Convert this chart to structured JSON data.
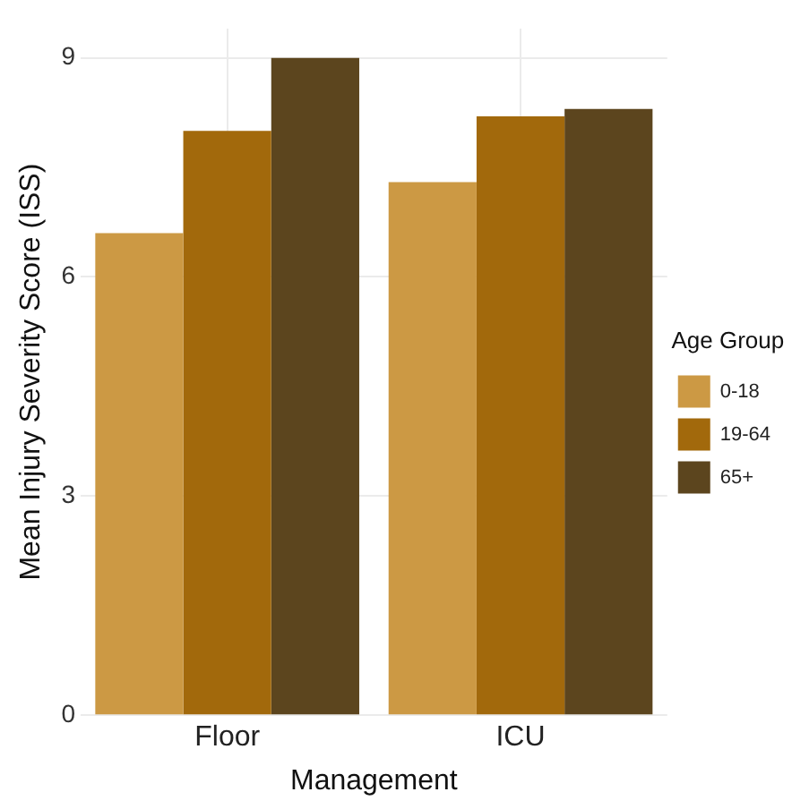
{
  "chart_data": {
    "type": "bar",
    "xlabel": "Management",
    "ylabel": "Mean Injury Severity Score (ISS)",
    "legend_title": "Age Group",
    "categories": [
      "Floor",
      "ICU"
    ],
    "series": [
      {
        "name": "0-18",
        "color": "#cc9944",
        "values": [
          6.6,
          7.3
        ]
      },
      {
        "name": "19-64",
        "color": "#a2690c",
        "values": [
          8.0,
          8.2
        ]
      },
      {
        "name": "65+",
        "color": "#5c451e",
        "values": [
          9.0,
          8.3
        ]
      }
    ],
    "ylim": [
      0,
      9.4
    ],
    "yticks": [
      0,
      3,
      6,
      9
    ],
    "grid": true,
    "legend": "right"
  }
}
